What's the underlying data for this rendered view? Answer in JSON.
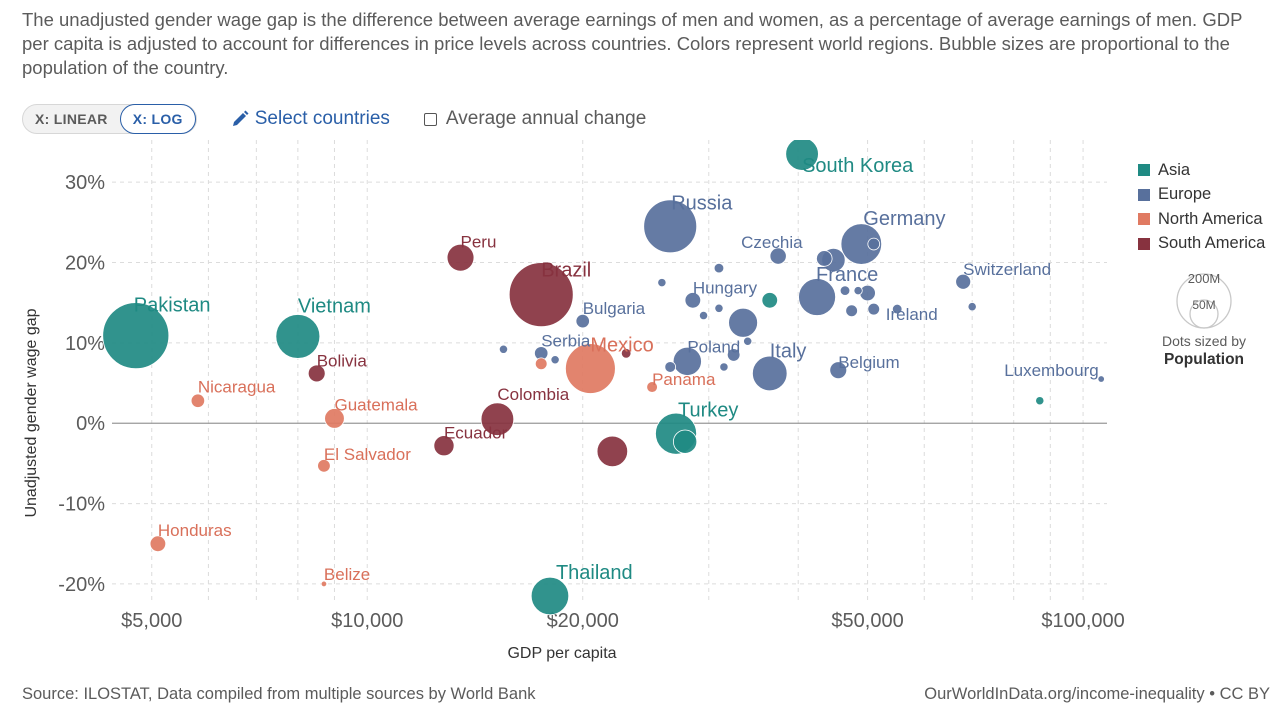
{
  "subtitle": "The unadjusted gender wage gap is the difference between average earnings of men and women, as a percentage of average earnings of men. GDP per capita is adjusted to account for differences in price levels across countries. Colors represent world regions. Bubble sizes are proportional to the population of the country.",
  "controls": {
    "linear_label": "X: LINEAR",
    "log_label": "X: LOG",
    "select_countries": "Select countries",
    "average_change": "Average annual change"
  },
  "legend": [
    {
      "name": "Asia",
      "color": "#1f8a83"
    },
    {
      "name": "Europe",
      "color": "#58709c"
    },
    {
      "name": "North America",
      "color": "#e07a62"
    },
    {
      "name": "South America",
      "color": "#87323f"
    }
  ],
  "size_legend": {
    "large": "200M",
    "small": "50M",
    "caption": "Dots sized by",
    "caption_bold": "Population"
  },
  "footer": {
    "source": "Source: ILOSTAT, Data compiled from multiple sources by World Bank",
    "credit": "OurWorldInData.org/income-inequality • CC BY"
  },
  "chart_data": {
    "type": "scatter",
    "xscale": "log",
    "xlabel": "GDP per capita",
    "ylabel": "Unadjusted gender wage gap",
    "xlim": [
      4400,
      108000
    ],
    "ylim": [
      -22,
      34
    ],
    "xticks": [
      {
        "value": 5000,
        "label": "$5,000"
      },
      {
        "value": 10000,
        "label": "$10,000"
      },
      {
        "value": 20000,
        "label": "$20,000"
      },
      {
        "value": 50000,
        "label": "$50,000"
      },
      {
        "value": 100000,
        "label": "$100,000"
      }
    ],
    "xgrid": [
      6000,
      7000,
      8000,
      9000,
      30000,
      40000,
      60000,
      70000,
      80000,
      90000
    ],
    "yticks": [
      {
        "value": 30,
        "label": "30%"
      },
      {
        "value": 20,
        "label": "20%"
      },
      {
        "value": 10,
        "label": "10%"
      },
      {
        "value": 0,
        "label": "0%"
      },
      {
        "value": -10,
        "label": "-10%"
      },
      {
        "value": -20,
        "label": "-20%"
      }
    ],
    "points": [
      {
        "name": "Pakistan",
        "region": "Asia",
        "gdp": 4750,
        "gap": 10.9,
        "pop": 230,
        "label": "Pakistan",
        "big": true
      },
      {
        "name": "Vietnam",
        "region": "Asia",
        "gdp": 8000,
        "gap": 10.8,
        "pop": 98,
        "label": "Vietnam",
        "big": true
      },
      {
        "name": "South Korea",
        "region": "Asia",
        "gdp": 40500,
        "gap": 33.5,
        "pop": 52,
        "label": "South Korea",
        "big": true
      },
      {
        "name": "Turkey",
        "region": "Asia",
        "gdp": 27000,
        "gap": -1.3,
        "pop": 85,
        "label": "Turkey",
        "big": true
      },
      {
        "name": "Thailand",
        "region": "Asia",
        "gdp": 18000,
        "gap": -21.5,
        "pop": 70,
        "label": "Thailand",
        "big": true
      },
      {
        "name": "Asia-2",
        "region": "Asia",
        "gdp": 27800,
        "gap": -2.3,
        "pop": 25,
        "label": ""
      },
      {
        "name": "Asia-3",
        "region": "Asia",
        "gdp": 36500,
        "gap": 15.3,
        "pop": 10,
        "label": ""
      },
      {
        "name": "Asia-4",
        "region": "Asia",
        "gdp": 87000,
        "gap": 2.8,
        "pop": 2,
        "label": ""
      },
      {
        "name": "Russia",
        "region": "Europe",
        "gdp": 26500,
        "gap": 24.5,
        "pop": 145,
        "label": "Russia",
        "big": true
      },
      {
        "name": "Germany",
        "region": "Europe",
        "gdp": 49000,
        "gap": 22.3,
        "pop": 83,
        "label": "Germany",
        "big": true
      },
      {
        "name": "Czechia",
        "region": "Europe",
        "gdp": 37500,
        "gap": 20.8,
        "pop": 11,
        "label": "Czechia"
      },
      {
        "name": "France",
        "region": "Europe",
        "gdp": 42500,
        "gap": 15.7,
        "pop": 68,
        "label": "France",
        "big": true
      },
      {
        "name": "Switzerland",
        "region": "Europe",
        "gdp": 68000,
        "gap": 17.6,
        "pop": 9,
        "label": "Switzerland"
      },
      {
        "name": "Ireland",
        "region": "Europe",
        "gdp": 51000,
        "gap": 14.2,
        "pop": 5,
        "label": "Ireland"
      },
      {
        "name": "Hungary",
        "region": "Europe",
        "gdp": 28500,
        "gap": 15.3,
        "pop": 10,
        "label": "Hungary"
      },
      {
        "name": "Bulgaria",
        "region": "Europe",
        "gdp": 20000,
        "gap": 12.7,
        "pop": 7,
        "label": "Bulgaria"
      },
      {
        "name": "Serbia",
        "region": "Europe",
        "gdp": 17500,
        "gap": 8.7,
        "pop": 7,
        "label": "Serbia"
      },
      {
        "name": "Poland",
        "region": "Europe",
        "gdp": 28000,
        "gap": 7.7,
        "pop": 38,
        "label": "Poland"
      },
      {
        "name": "Italy",
        "region": "Europe",
        "gdp": 36500,
        "gap": 6.2,
        "pop": 59,
        "label": "Italy",
        "big": true
      },
      {
        "name": "Belgium",
        "region": "Europe",
        "gdp": 45500,
        "gap": 6.6,
        "pop": 12,
        "label": "Belgium"
      },
      {
        "name": "Luxembourg",
        "region": "Europe",
        "gdp": 106000,
        "gap": 5.5,
        "pop": 1,
        "label": "Luxembourg"
      },
      {
        "name": "Europe-a",
        "region": "Europe",
        "gdp": 43500,
        "gap": 20.5,
        "pop": 10,
        "label": ""
      },
      {
        "name": "Europe-b",
        "region": "Europe",
        "gdp": 44800,
        "gap": 20.3,
        "pop": 25,
        "label": ""
      },
      {
        "name": "Europe-c",
        "region": "Europe",
        "gdp": 51000,
        "gap": 22.3,
        "pop": 5,
        "label": ""
      },
      {
        "name": "Europe-d",
        "region": "Europe",
        "gdp": 33500,
        "gap": 12.5,
        "pop": 40,
        "label": ""
      },
      {
        "name": "Europe-e",
        "region": "Europe",
        "gdp": 31000,
        "gap": 19.3,
        "pop": 3,
        "label": ""
      },
      {
        "name": "Europe-f",
        "region": "Europe",
        "gdp": 25800,
        "gap": 17.5,
        "pop": 2,
        "label": ""
      },
      {
        "name": "Europe-g",
        "region": "Europe",
        "gdp": 48500,
        "gap": 16.5,
        "pop": 2,
        "label": ""
      },
      {
        "name": "Europe-h",
        "region": "Europe",
        "gdp": 50000,
        "gap": 16.2,
        "pop": 10,
        "label": ""
      },
      {
        "name": "Europe-i",
        "region": "Europe",
        "gdp": 46500,
        "gap": 16.5,
        "pop": 3,
        "label": ""
      },
      {
        "name": "Europe-j",
        "region": "Europe",
        "gdp": 47500,
        "gap": 14.0,
        "pop": 5,
        "label": ""
      },
      {
        "name": "Europe-k",
        "region": "Europe",
        "gdp": 55000,
        "gap": 14.2,
        "pop": 3,
        "label": ""
      },
      {
        "name": "Europe-l",
        "region": "Europe",
        "gdp": 70000,
        "gap": 14.5,
        "pop": 2,
        "label": ""
      },
      {
        "name": "Europe-m",
        "region": "Europe",
        "gdp": 29500,
        "gap": 13.4,
        "pop": 2,
        "label": ""
      },
      {
        "name": "Europe-n",
        "region": "Europe",
        "gdp": 31000,
        "gap": 14.3,
        "pop": 2,
        "label": ""
      },
      {
        "name": "Europe-o",
        "region": "Europe",
        "gdp": 32500,
        "gap": 8.5,
        "pop": 6,
        "label": ""
      },
      {
        "name": "Europe-p",
        "region": "Europe",
        "gdp": 31500,
        "gap": 7.0,
        "pop": 2,
        "label": ""
      },
      {
        "name": "Europe-q",
        "region": "Europe",
        "gdp": 26500,
        "gap": 7.0,
        "pop": 4,
        "label": ""
      },
      {
        "name": "Europe-r",
        "region": "Europe",
        "gdp": 34000,
        "gap": 10.2,
        "pop": 2,
        "label": ""
      },
      {
        "name": "Europe-s",
        "region": "Europe",
        "gdp": 15500,
        "gap": 9.2,
        "pop": 2,
        "label": ""
      },
      {
        "name": "Europe-t",
        "region": "Europe",
        "gdp": 18300,
        "gap": 7.9,
        "pop": 2,
        "label": ""
      },
      {
        "name": "Mexico",
        "region": "North America",
        "gdp": 20500,
        "gap": 6.8,
        "pop": 128,
        "label": "Mexico",
        "big": true
      },
      {
        "name": "Panama",
        "region": "North America",
        "gdp": 25000,
        "gap": 4.5,
        "pop": 4,
        "label": "Panama"
      },
      {
        "name": "Nicaragua",
        "region": "North America",
        "gdp": 5800,
        "gap": 2.8,
        "pop": 7,
        "label": "Nicaragua"
      },
      {
        "name": "Guatemala",
        "region": "North America",
        "gdp": 9000,
        "gap": 0.6,
        "pop": 17,
        "label": "Guatemala"
      },
      {
        "name": "El Salvador",
        "region": "North America",
        "gdp": 8700,
        "gap": -5.3,
        "pop": 6,
        "label": "El Salvador"
      },
      {
        "name": "Honduras",
        "region": "North America",
        "gdp": 5100,
        "gap": -15.0,
        "pop": 10,
        "label": "Honduras"
      },
      {
        "name": "Belize",
        "region": "North America",
        "gdp": 8700,
        "gap": -20.0,
        "pop": 0.5,
        "label": "Belize"
      },
      {
        "name": "NorthAm-x",
        "region": "North America",
        "gdp": 17500,
        "gap": 7.4,
        "pop": 5,
        "label": ""
      },
      {
        "name": "Brazil",
        "region": "South America",
        "gdp": 17500,
        "gap": 16.0,
        "pop": 215,
        "label": "Brazil",
        "big": true
      },
      {
        "name": "Peru",
        "region": "South America",
        "gdp": 13500,
        "gap": 20.6,
        "pop": 34,
        "label": "Peru"
      },
      {
        "name": "Bolivia",
        "region": "South America",
        "gdp": 8500,
        "gap": 6.2,
        "pop": 12,
        "label": "Bolivia"
      },
      {
        "name": "Colombia",
        "region": "South America",
        "gdp": 15200,
        "gap": 0.5,
        "pop": 52,
        "label": "Colombia"
      },
      {
        "name": "Ecuador",
        "region": "South America",
        "gdp": 12800,
        "gap": -2.8,
        "pop": 18,
        "label": "Ecuador"
      },
      {
        "name": "SouthAm-x",
        "region": "South America",
        "gdp": 22000,
        "gap": -3.5,
        "pop": 45,
        "label": ""
      },
      {
        "name": "SouthAm-y",
        "region": "South America",
        "gdp": 23000,
        "gap": 8.7,
        "pop": 3,
        "label": ""
      }
    ]
  }
}
